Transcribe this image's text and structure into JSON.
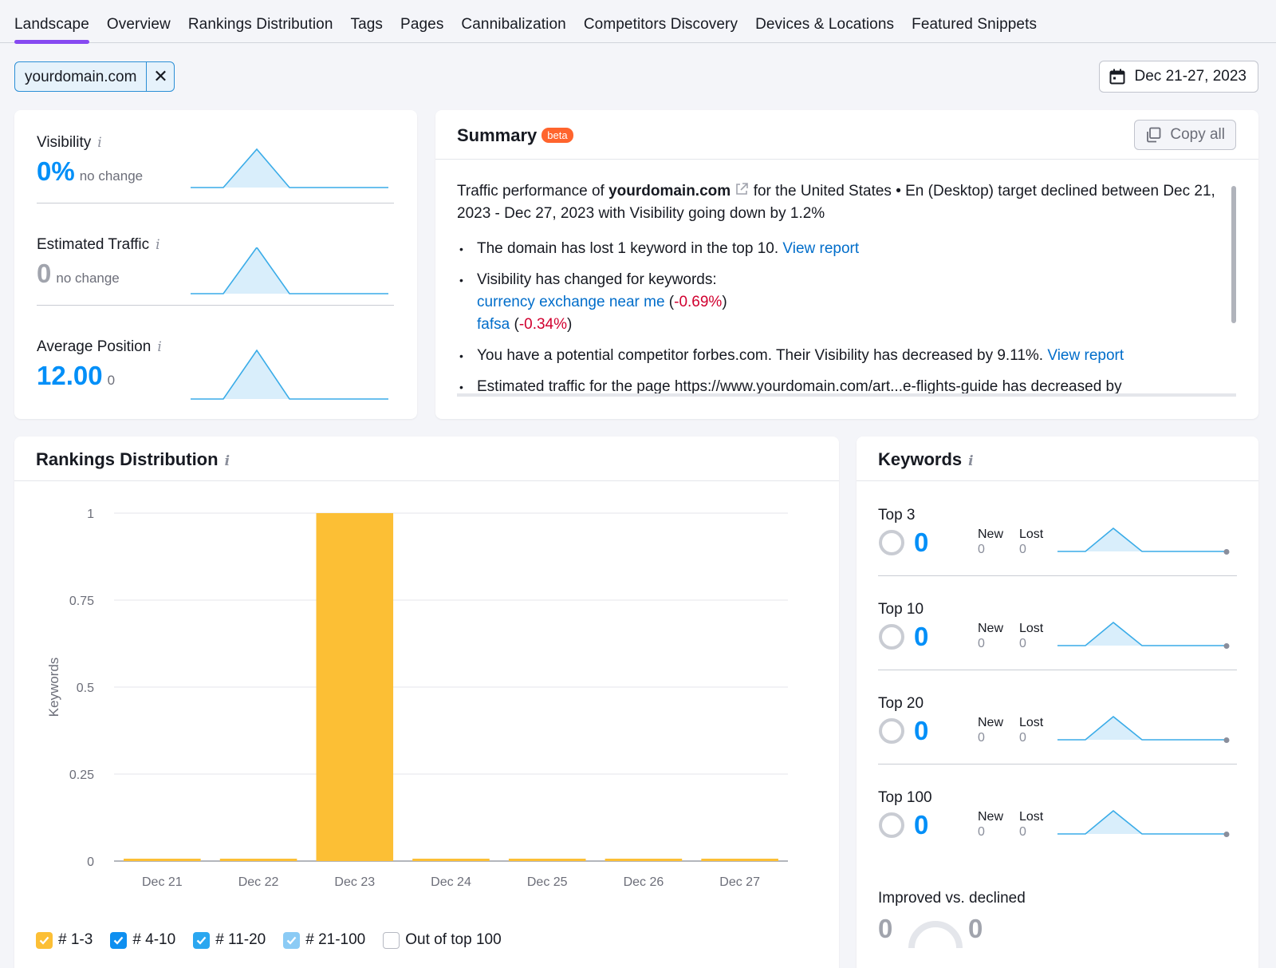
{
  "tabs": [
    "Landscape",
    "Overview",
    "Rankings Distribution",
    "Tags",
    "Pages",
    "Cannibalization",
    "Competitors Discovery",
    "Devices & Locations",
    "Featured Snippets"
  ],
  "domain_chip": {
    "label": "yourdomain.com",
    "close": "✕"
  },
  "date_range": "Dec 21-27, 2023",
  "metrics": {
    "visibility": {
      "label": "Visibility",
      "value": "0%",
      "sub": "no change"
    },
    "traffic": {
      "label": "Estimated Traffic",
      "value": "0",
      "sub": "no change"
    },
    "position": {
      "label": "Average Position",
      "value": "12.00",
      "sub": "0"
    },
    "info": "i"
  },
  "summary": {
    "title": "Summary",
    "beta": "beta",
    "copy": "Copy all",
    "intro_pre": "Traffic performance of ",
    "intro_domain": "yourdomain.com",
    "intro_post": " for the United States • En (Desktop) target declined between Dec 21, 2023 - Dec 27, 2023 with Visibility going down by 1.2%",
    "b1_text": "The domain has lost 1 keyword in the top 10. ",
    "b1_link": "View report",
    "b2_text": "Visibility has changed for keywords:",
    "kw1": "currency exchange near me",
    "kw1_change": "-0.69%",
    "kw2": "fafsa",
    "kw2_change": "-0.34%",
    "b3_text": "You have a potential competitor forbes.com. Their Visibility has decreased by 9.11%. ",
    "b3_link": "View report",
    "b4_text": "Estimated traffic for the page https://www.yourdomain.com/art...e-flights-guide has decreased by"
  },
  "rankings": {
    "title": "Rankings Distribution",
    "legend": [
      "# 1-3",
      "# 4-10",
      "# 11-20",
      "# 21-100",
      "Out of top 100"
    ],
    "legend_colors": [
      "#fcbf35",
      "#0e8ff0",
      "#2ba7f0",
      "#8bcbf5",
      "#ffffff"
    ]
  },
  "chart_data": {
    "type": "bar",
    "ylabel": "Keywords",
    "ylim": [
      0,
      1
    ],
    "yticks": [
      "1",
      "0.75",
      "0.5",
      "0.25",
      "0"
    ],
    "categories": [
      "Dec 21",
      "Dec 22",
      "Dec 23",
      "Dec 24",
      "Dec 25",
      "Dec 26",
      "Dec 27"
    ],
    "series": [
      {
        "name": "# 1-3",
        "color": "#fcbf35",
        "values": [
          0,
          0,
          1,
          0,
          0,
          0,
          0
        ]
      }
    ]
  },
  "keywords": {
    "title": "Keywords",
    "rows": [
      {
        "label": "Top 3",
        "value": "0",
        "new_label": "New",
        "new": "0",
        "lost_label": "Lost",
        "lost": "0"
      },
      {
        "label": "Top 10",
        "value": "0",
        "new_label": "New",
        "new": "0",
        "lost_label": "Lost",
        "lost": "0"
      },
      {
        "label": "Top 20",
        "value": "0",
        "new_label": "New",
        "new": "0",
        "lost_label": "Lost",
        "lost": "0"
      },
      {
        "label": "Top 100",
        "value": "0",
        "new_label": "New",
        "new": "0",
        "lost_label": "Lost",
        "lost": "0"
      }
    ],
    "improved_label": "Improved vs. declined",
    "improved": "0",
    "declined": "0"
  }
}
